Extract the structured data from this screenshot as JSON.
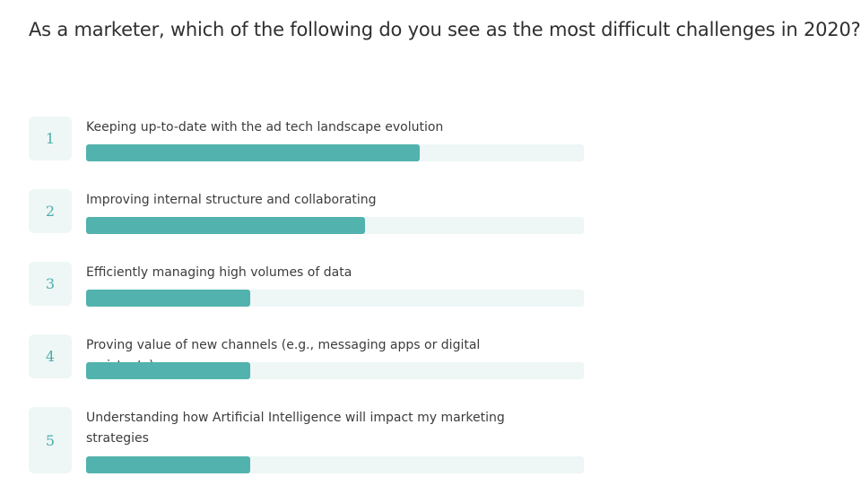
{
  "question": "As a marketer, which of the following do you see as the most difficult challenges in 2020?",
  "chart_data": {
    "type": "bar",
    "title": "As a marketer, which of the following do you see as the most difficult challenges in 2020?",
    "orientation": "horizontal",
    "value_unit": "fraction of bar track filled",
    "xlim": [
      0,
      1
    ],
    "categories": [
      "Keeping up-to-date with the ad tech landscape evolution",
      "Improving internal structure and collaborating",
      "Efficiently managing high volumes of data",
      "Proving value of new channels (e.g., messaging apps or digital assistants)",
      "Understanding how Artificial Intelligence will impact my marketing strategies"
    ],
    "ranks": [
      "1",
      "2",
      "3",
      "4",
      "5"
    ],
    "values": [
      0.67,
      0.56,
      0.33,
      0.33,
      0.33
    ],
    "grid": false
  },
  "colors": {
    "bar_fill": "#52b2ad",
    "bar_track": "#eef6f6",
    "rank_bg": "#eef6f6",
    "rank_text": "#4aaeaa"
  }
}
